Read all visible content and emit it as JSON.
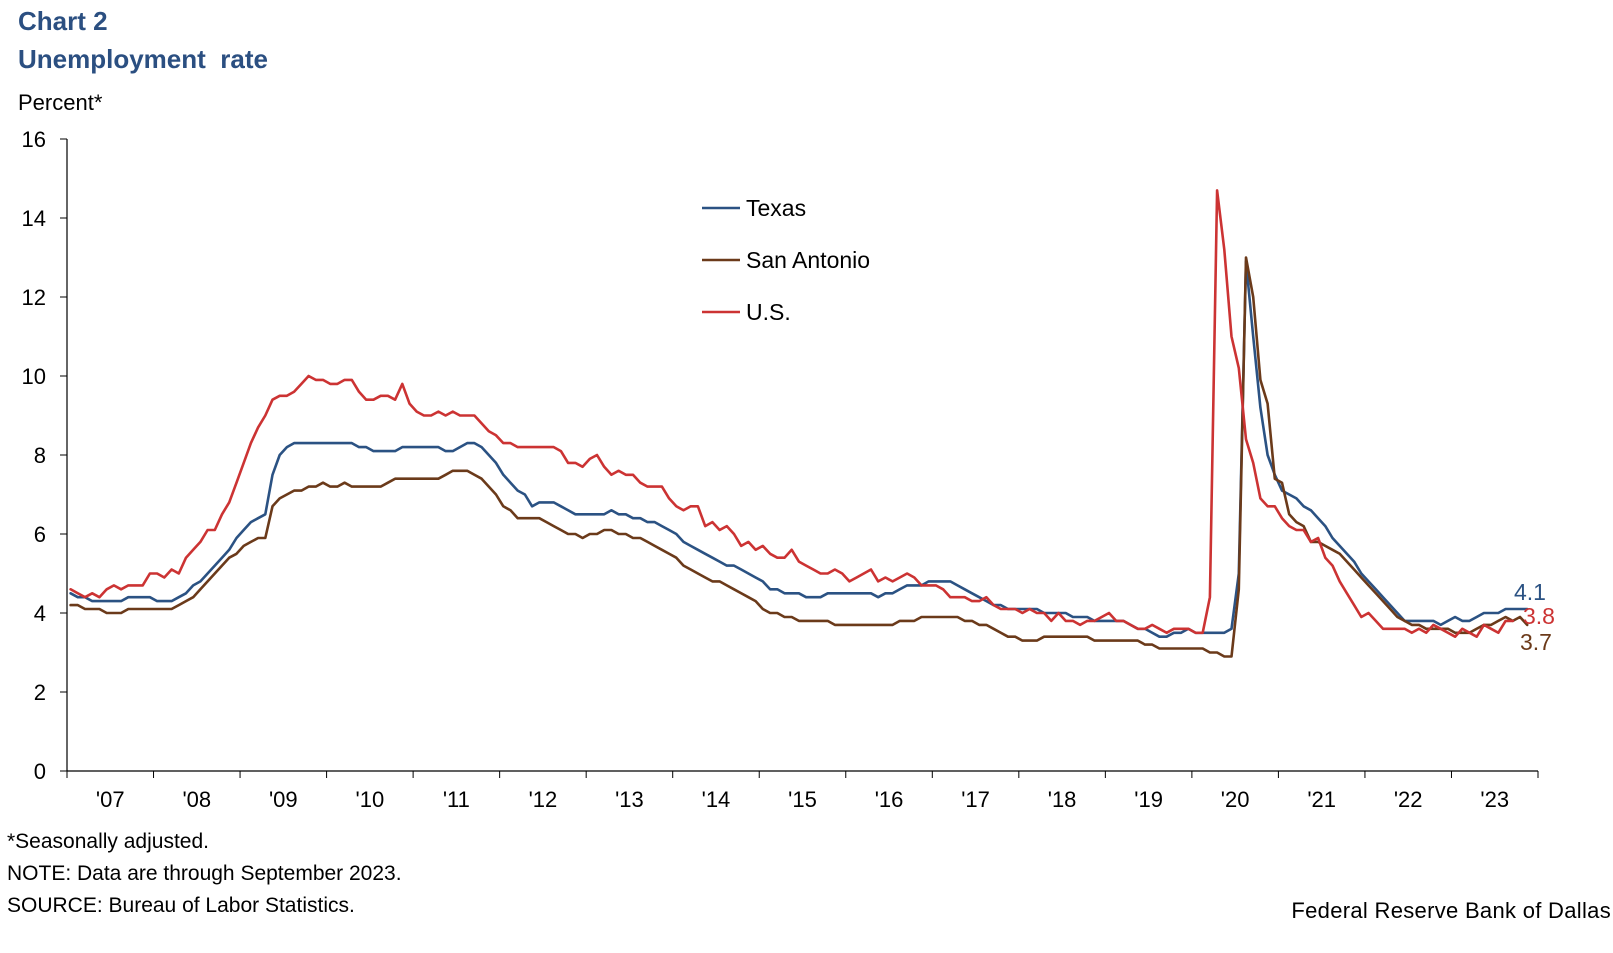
{
  "header": {
    "chart_number": "Chart 2",
    "title": "Unemployment  rate"
  },
  "footnotes": {
    "seasonal": "*Seasonally adjusted.",
    "note": "NOTE: Data are through September 2023.",
    "source": "SOURCE: Bureau of Labor Statistics."
  },
  "credit": "Federal Reserve Bank of Dallas",
  "colors": {
    "texas": "#2b5283",
    "san_antonio": "#6b3a1a",
    "us": "#cc3333",
    "axis": "#000000",
    "title": "#2b4f81"
  },
  "chart_data": {
    "type": "line",
    "title": "Unemployment  rate",
    "ylabel": "Percent*",
    "xlabel": "",
    "ylim": [
      0,
      16
    ],
    "yticks": [
      0,
      2,
      4,
      6,
      8,
      10,
      12,
      14,
      16
    ],
    "x_range": [
      2007.0,
      2024.0
    ],
    "frequency": "monthly",
    "start": "2007-01",
    "end": "2023-09",
    "x_tick_labels": [
      "'07",
      "'08",
      "'09",
      "'10",
      "'11",
      "'12",
      "'13",
      "'14",
      "'15",
      "'16",
      "'17",
      "'18",
      "'19",
      "'20",
      "'21",
      "'22",
      "'23"
    ],
    "legend_position": "top-center",
    "end_labels": {
      "Texas": "4.1",
      "U.S.": "3.8",
      "San Antonio": "3.7"
    },
    "series": [
      {
        "name": "Texas",
        "color": "#2b5283",
        "values": [
          4.5,
          4.4,
          4.4,
          4.3,
          4.3,
          4.3,
          4.3,
          4.3,
          4.4,
          4.4,
          4.4,
          4.4,
          4.3,
          4.3,
          4.3,
          4.4,
          4.5,
          4.7,
          4.8,
          5.0,
          5.2,
          5.4,
          5.6,
          5.9,
          6.1,
          6.3,
          6.4,
          6.5,
          7.5,
          8.0,
          8.2,
          8.3,
          8.3,
          8.3,
          8.3,
          8.3,
          8.3,
          8.3,
          8.3,
          8.3,
          8.2,
          8.2,
          8.1,
          8.1,
          8.1,
          8.1,
          8.2,
          8.2,
          8.2,
          8.2,
          8.2,
          8.2,
          8.1,
          8.1,
          8.2,
          8.3,
          8.3,
          8.2,
          8.0,
          7.8,
          7.5,
          7.3,
          7.1,
          7.0,
          6.7,
          6.8,
          6.8,
          6.8,
          6.7,
          6.6,
          6.5,
          6.5,
          6.5,
          6.5,
          6.5,
          6.6,
          6.5,
          6.5,
          6.4,
          6.4,
          6.3,
          6.3,
          6.2,
          6.1,
          6.0,
          5.8,
          5.7,
          5.6,
          5.5,
          5.4,
          5.3,
          5.2,
          5.2,
          5.1,
          5.0,
          4.9,
          4.8,
          4.6,
          4.6,
          4.5,
          4.5,
          4.5,
          4.4,
          4.4,
          4.4,
          4.5,
          4.5,
          4.5,
          4.5,
          4.5,
          4.5,
          4.5,
          4.4,
          4.5,
          4.5,
          4.6,
          4.7,
          4.7,
          4.7,
          4.8,
          4.8,
          4.8,
          4.8,
          4.7,
          4.6,
          4.5,
          4.4,
          4.3,
          4.2,
          4.2,
          4.1,
          4.1,
          4.1,
          4.1,
          4.1,
          4.0,
          4.0,
          4.0,
          4.0,
          3.9,
          3.9,
          3.9,
          3.8,
          3.8,
          3.8,
          3.8,
          3.8,
          3.7,
          3.6,
          3.6,
          3.5,
          3.4,
          3.4,
          3.5,
          3.5,
          3.6,
          3.5,
          3.5,
          3.5,
          3.5,
          3.5,
          3.6,
          5.0,
          12.9,
          11.0,
          9.2,
          8.0,
          7.5,
          7.1,
          7.0,
          6.9,
          6.7,
          6.6,
          6.4,
          6.2,
          5.9,
          5.7,
          5.5,
          5.3,
          5.0,
          4.8,
          4.6,
          4.4,
          4.2,
          4.0,
          3.8,
          3.8,
          3.8,
          3.8,
          3.8,
          3.7,
          3.8,
          3.9,
          3.8,
          3.8,
          3.9,
          4.0,
          4.0,
          4.0,
          4.1,
          4.1,
          4.1,
          4.1
        ]
      },
      {
        "name": "San Antonio",
        "color": "#6b3a1a",
        "values": [
          4.2,
          4.2,
          4.1,
          4.1,
          4.1,
          4.0,
          4.0,
          4.0,
          4.1,
          4.1,
          4.1,
          4.1,
          4.1,
          4.1,
          4.1,
          4.2,
          4.3,
          4.4,
          4.6,
          4.8,
          5.0,
          5.2,
          5.4,
          5.5,
          5.7,
          5.8,
          5.9,
          5.9,
          6.7,
          6.9,
          7.0,
          7.1,
          7.1,
          7.2,
          7.2,
          7.3,
          7.2,
          7.2,
          7.3,
          7.2,
          7.2,
          7.2,
          7.2,
          7.2,
          7.3,
          7.4,
          7.4,
          7.4,
          7.4,
          7.4,
          7.4,
          7.4,
          7.5,
          7.6,
          7.6,
          7.6,
          7.5,
          7.4,
          7.2,
          7.0,
          6.7,
          6.6,
          6.4,
          6.4,
          6.4,
          6.4,
          6.3,
          6.2,
          6.1,
          6.0,
          6.0,
          5.9,
          6.0,
          6.0,
          6.1,
          6.1,
          6.0,
          6.0,
          5.9,
          5.9,
          5.8,
          5.7,
          5.6,
          5.5,
          5.4,
          5.2,
          5.1,
          5.0,
          4.9,
          4.8,
          4.8,
          4.7,
          4.6,
          4.5,
          4.4,
          4.3,
          4.1,
          4.0,
          4.0,
          3.9,
          3.9,
          3.8,
          3.8,
          3.8,
          3.8,
          3.8,
          3.7,
          3.7,
          3.7,
          3.7,
          3.7,
          3.7,
          3.7,
          3.7,
          3.7,
          3.8,
          3.8,
          3.8,
          3.9,
          3.9,
          3.9,
          3.9,
          3.9,
          3.9,
          3.8,
          3.8,
          3.7,
          3.7,
          3.6,
          3.5,
          3.4,
          3.4,
          3.3,
          3.3,
          3.3,
          3.4,
          3.4,
          3.4,
          3.4,
          3.4,
          3.4,
          3.4,
          3.3,
          3.3,
          3.3,
          3.3,
          3.3,
          3.3,
          3.3,
          3.2,
          3.2,
          3.1,
          3.1,
          3.1,
          3.1,
          3.1,
          3.1,
          3.1,
          3.0,
          3.0,
          2.9,
          2.9,
          4.6,
          13.0,
          12.0,
          9.9,
          9.3,
          7.4,
          7.3,
          6.5,
          6.3,
          6.2,
          5.8,
          5.8,
          5.7,
          5.6,
          5.5,
          5.3,
          5.1,
          4.9,
          4.7,
          4.5,
          4.3,
          4.1,
          3.9,
          3.8,
          3.7,
          3.7,
          3.6,
          3.6,
          3.6,
          3.6,
          3.5,
          3.5,
          3.5,
          3.6,
          3.7,
          3.7,
          3.8,
          3.9,
          3.8,
          3.9,
          3.7
        ]
      },
      {
        "name": "U.S.",
        "color": "#cc3333",
        "values": [
          4.6,
          4.5,
          4.4,
          4.5,
          4.4,
          4.6,
          4.7,
          4.6,
          4.7,
          4.7,
          4.7,
          5.0,
          5.0,
          4.9,
          5.1,
          5.0,
          5.4,
          5.6,
          5.8,
          6.1,
          6.1,
          6.5,
          6.8,
          7.3,
          7.8,
          8.3,
          8.7,
          9.0,
          9.4,
          9.5,
          9.5,
          9.6,
          9.8,
          10.0,
          9.9,
          9.9,
          9.8,
          9.8,
          9.9,
          9.9,
          9.6,
          9.4,
          9.4,
          9.5,
          9.5,
          9.4,
          9.8,
          9.3,
          9.1,
          9.0,
          9.0,
          9.1,
          9.0,
          9.1,
          9.0,
          9.0,
          9.0,
          8.8,
          8.6,
          8.5,
          8.3,
          8.3,
          8.2,
          8.2,
          8.2,
          8.2,
          8.2,
          8.2,
          8.1,
          7.8,
          7.8,
          7.7,
          7.9,
          8.0,
          7.7,
          7.5,
          7.6,
          7.5,
          7.5,
          7.3,
          7.2,
          7.2,
          7.2,
          6.9,
          6.7,
          6.6,
          6.7,
          6.7,
          6.2,
          6.3,
          6.1,
          6.2,
          6.0,
          5.7,
          5.8,
          5.6,
          5.7,
          5.5,
          5.4,
          5.4,
          5.6,
          5.3,
          5.2,
          5.1,
          5.0,
          5.0,
          5.1,
          5.0,
          4.8,
          4.9,
          5.0,
          5.1,
          4.8,
          4.9,
          4.8,
          4.9,
          5.0,
          4.9,
          4.7,
          4.7,
          4.7,
          4.6,
          4.4,
          4.4,
          4.4,
          4.3,
          4.3,
          4.4,
          4.2,
          4.1,
          4.1,
          4.1,
          4.0,
          4.1,
          4.0,
          4.0,
          3.8,
          4.0,
          3.8,
          3.8,
          3.7,
          3.8,
          3.8,
          3.9,
          4.0,
          3.8,
          3.8,
          3.7,
          3.6,
          3.6,
          3.7,
          3.6,
          3.5,
          3.6,
          3.6,
          3.6,
          3.5,
          3.5,
          4.4,
          14.7,
          13.2,
          11.0,
          10.2,
          8.4,
          7.8,
          6.9,
          6.7,
          6.7,
          6.4,
          6.2,
          6.1,
          6.1,
          5.8,
          5.9,
          5.4,
          5.2,
          4.8,
          4.5,
          4.2,
          3.9,
          4.0,
          3.8,
          3.6,
          3.6,
          3.6,
          3.6,
          3.5,
          3.6,
          3.5,
          3.7,
          3.6,
          3.5,
          3.4,
          3.6,
          3.5,
          3.4,
          3.7,
          3.6,
          3.5,
          3.8,
          3.8
        ]
      }
    ]
  }
}
